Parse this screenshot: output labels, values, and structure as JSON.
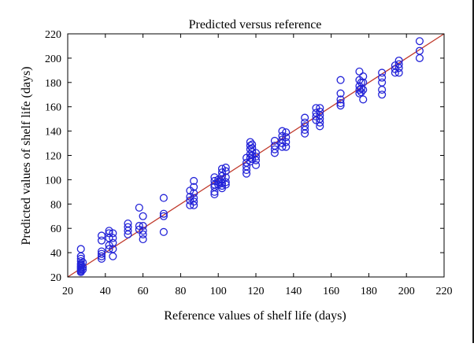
{
  "chart_data": {
    "type": "scatter",
    "title": "Predicted versus reference",
    "xlabel": "Reference values of shelf life (days)",
    "ylabel": "Predicted values of shelf life (days)",
    "xlim": [
      20,
      220
    ],
    "ylim": [
      20,
      220
    ],
    "xticks": [
      20,
      40,
      60,
      80,
      100,
      120,
      140,
      160,
      180,
      200,
      220
    ],
    "yticks": [
      20,
      40,
      60,
      80,
      100,
      120,
      140,
      160,
      180,
      200,
      220
    ],
    "grid": false,
    "marker": "open-circle",
    "colors": {
      "points": "#2323d8",
      "reference_line": "#c0392b"
    },
    "reference_line": {
      "from": [
        20,
        20
      ],
      "to": [
        220,
        220
      ]
    },
    "points": [
      [
        27,
        43
      ],
      [
        27,
        37
      ],
      [
        27,
        35
      ],
      [
        27,
        33
      ],
      [
        27,
        31
      ],
      [
        27,
        30
      ],
      [
        27,
        29
      ],
      [
        27,
        28
      ],
      [
        27,
        27
      ],
      [
        27,
        26
      ],
      [
        27,
        25
      ],
      [
        27,
        24
      ],
      [
        28,
        32
      ],
      [
        28,
        28
      ],
      [
        28,
        26
      ],
      [
        38,
        54
      ],
      [
        38,
        50
      ],
      [
        38,
        41
      ],
      [
        38,
        39
      ],
      [
        38,
        37
      ],
      [
        38,
        35
      ],
      [
        42,
        58
      ],
      [
        42,
        56
      ],
      [
        42,
        52
      ],
      [
        42,
        46
      ],
      [
        42,
        43
      ],
      [
        44,
        56
      ],
      [
        44,
        52
      ],
      [
        44,
        48
      ],
      [
        44,
        43
      ],
      [
        44,
        37
      ],
      [
        52,
        64
      ],
      [
        52,
        61
      ],
      [
        52,
        58
      ],
      [
        52,
        55
      ],
      [
        58,
        77
      ],
      [
        58,
        62
      ],
      [
        58,
        59
      ],
      [
        60,
        70
      ],
      [
        60,
        62
      ],
      [
        60,
        58
      ],
      [
        60,
        55
      ],
      [
        60,
        51
      ],
      [
        71,
        85
      ],
      [
        71,
        72
      ],
      [
        71,
        70
      ],
      [
        71,
        57
      ],
      [
        85,
        91
      ],
      [
        85,
        86
      ],
      [
        85,
        83
      ],
      [
        85,
        79
      ],
      [
        87,
        99
      ],
      [
        87,
        94
      ],
      [
        87,
        89
      ],
      [
        87,
        85
      ],
      [
        87,
        82
      ],
      [
        87,
        79
      ],
      [
        98,
        102
      ],
      [
        98,
        99
      ],
      [
        98,
        96
      ],
      [
        98,
        94
      ],
      [
        98,
        90
      ],
      [
        98,
        88
      ],
      [
        100,
        100
      ],
      [
        100,
        98
      ],
      [
        100,
        96
      ],
      [
        102,
        109
      ],
      [
        102,
        106
      ],
      [
        102,
        103
      ],
      [
        102,
        100
      ],
      [
        102,
        97
      ],
      [
        102,
        95
      ],
      [
        102,
        93
      ],
      [
        104,
        110
      ],
      [
        104,
        107
      ],
      [
        104,
        102
      ],
      [
        104,
        98
      ],
      [
        104,
        96
      ],
      [
        115,
        118
      ],
      [
        115,
        114
      ],
      [
        115,
        111
      ],
      [
        115,
        108
      ],
      [
        115,
        105
      ],
      [
        117,
        131
      ],
      [
        117,
        128
      ],
      [
        117,
        125
      ],
      [
        117,
        121
      ],
      [
        117,
        118
      ],
      [
        117,
        115
      ],
      [
        118,
        129
      ],
      [
        118,
        126
      ],
      [
        118,
        123
      ],
      [
        118,
        120
      ],
      [
        118,
        117
      ],
      [
        120,
        122
      ],
      [
        120,
        119
      ],
      [
        120,
        116
      ],
      [
        120,
        112
      ],
      [
        130,
        132
      ],
      [
        130,
        128
      ],
      [
        130,
        125
      ],
      [
        130,
        122
      ],
      [
        134,
        140
      ],
      [
        134,
        136
      ],
      [
        134,
        133
      ],
      [
        134,
        130
      ],
      [
        134,
        127
      ],
      [
        136,
        139
      ],
      [
        136,
        135
      ],
      [
        136,
        131
      ],
      [
        136,
        127
      ],
      [
        146,
        151
      ],
      [
        146,
        147
      ],
      [
        146,
        144
      ],
      [
        146,
        141
      ],
      [
        146,
        138
      ],
      [
        152,
        159
      ],
      [
        152,
        155
      ],
      [
        152,
        152
      ],
      [
        152,
        149
      ],
      [
        154,
        159
      ],
      [
        154,
        156
      ],
      [
        154,
        153
      ],
      [
        154,
        150
      ],
      [
        154,
        147
      ],
      [
        154,
        144
      ],
      [
        165,
        182
      ],
      [
        165,
        171
      ],
      [
        165,
        166
      ],
      [
        165,
        163
      ],
      [
        165,
        161
      ],
      [
        175,
        189
      ],
      [
        175,
        182
      ],
      [
        175,
        177
      ],
      [
        175,
        174
      ],
      [
        175,
        171
      ],
      [
        176,
        180
      ],
      [
        176,
        175
      ],
      [
        176,
        172
      ],
      [
        177,
        185
      ],
      [
        177,
        180
      ],
      [
        177,
        174
      ],
      [
        177,
        166
      ],
      [
        187,
        188
      ],
      [
        187,
        184
      ],
      [
        187,
        180
      ],
      [
        187,
        174
      ],
      [
        187,
        170
      ],
      [
        194,
        194
      ],
      [
        194,
        191
      ],
      [
        194,
        188
      ],
      [
        196,
        198
      ],
      [
        196,
        195
      ],
      [
        196,
        192
      ],
      [
        196,
        188
      ],
      [
        207,
        214
      ],
      [
        207,
        206
      ],
      [
        207,
        200
      ]
    ]
  }
}
